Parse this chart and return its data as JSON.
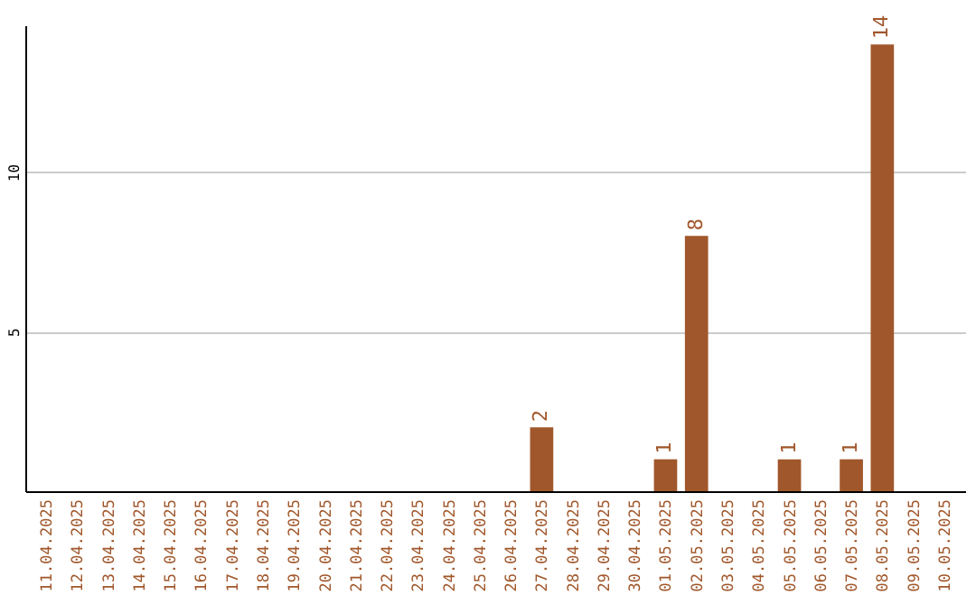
{
  "chart_data": {
    "type": "bar",
    "categories": [
      "11.04.2025",
      "12.04.2025",
      "13.04.2025",
      "14.04.2025",
      "15.04.2025",
      "16.04.2025",
      "17.04.2025",
      "18.04.2025",
      "19.04.2025",
      "20.04.2025",
      "21.04.2025",
      "22.04.2025",
      "23.04.2025",
      "24.04.2025",
      "25.04.2025",
      "26.04.2025",
      "27.04.2025",
      "28.04.2025",
      "29.04.2025",
      "30.04.2025",
      "01.05.2025",
      "02.05.2025",
      "03.05.2025",
      "04.05.2025",
      "05.05.2025",
      "06.05.2025",
      "07.05.2025",
      "08.05.2025",
      "09.05.2025",
      "10.05.2025"
    ],
    "values": [
      0,
      0,
      0,
      0,
      0,
      0,
      0,
      0,
      0,
      0,
      0,
      0,
      0,
      0,
      0,
      0,
      2,
      0,
      0,
      0,
      1,
      8,
      0,
      0,
      1,
      0,
      1,
      14,
      0,
      0
    ],
    "value_labels": [
      null,
      null,
      null,
      null,
      null,
      null,
      null,
      null,
      null,
      null,
      null,
      null,
      null,
      null,
      null,
      null,
      "2",
      null,
      null,
      null,
      "1",
      "8",
      null,
      null,
      "1",
      null,
      "1",
      "14",
      null,
      null
    ],
    "color": "#a0572b",
    "ylim": [
      0,
      14.6
    ],
    "yticks": [
      5,
      10
    ],
    "grid": "y"
  }
}
